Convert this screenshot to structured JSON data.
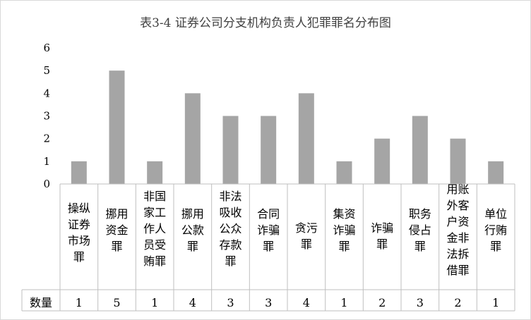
{
  "chart_data": {
    "type": "bar",
    "title": "表3-4 证券公司分支机构负责人犯罪罪名分布图",
    "categories": [
      "操纵证券市场罪",
      "挪用资金罪",
      "非国家工作人员受贿罪",
      "挪用公款罪",
      "非法吸收公众存款罪",
      "合同诈骗罪",
      "贪污罪",
      "集资诈骗罪",
      "诈骗罪",
      "职务侵占罪",
      "用账外客户资金非法拆借罪",
      "单位行贿罪"
    ],
    "category_lines": [
      [
        "操纵",
        "证券",
        "市场",
        "罪"
      ],
      [
        "挪用",
        "资金",
        "罪"
      ],
      [
        "非国",
        "家工",
        "作人",
        "员受",
        "贿罪"
      ],
      [
        "挪用",
        "公款",
        "罪"
      ],
      [
        "非法",
        "吸收",
        "公众",
        "存款",
        "罪"
      ],
      [
        "合同",
        "诈骗",
        "罪"
      ],
      [
        "贪污",
        "罪"
      ],
      [
        "集资",
        "诈骗",
        "罪"
      ],
      [
        "诈骗",
        "罪"
      ],
      [
        "职务",
        "侵占",
        "罪"
      ],
      [
        "用账",
        "外客",
        "户资",
        "金非",
        "法拆",
        "借罪"
      ],
      [
        "单位",
        "行贿",
        "罪"
      ]
    ],
    "series": [
      {
        "name": "数量",
        "values": [
          1,
          5,
          1,
          4,
          3,
          3,
          4,
          1,
          2,
          3,
          2,
          1
        ]
      }
    ],
    "yticks": [
      "0",
      "1",
      "2",
      "3",
      "4",
      "5",
      "6"
    ],
    "ylim": [
      0,
      6
    ],
    "grid": false,
    "legend": "none",
    "data_table": true,
    "bar_color": "#a5a5a5"
  }
}
